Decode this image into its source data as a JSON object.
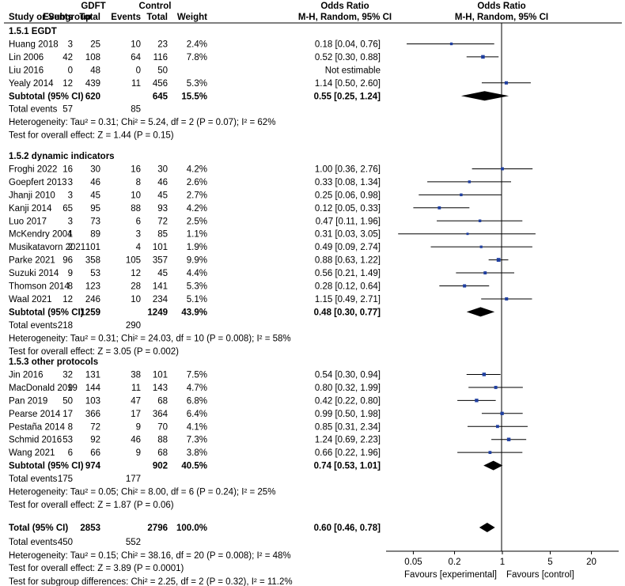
{
  "chart_data": {
    "type": "forest",
    "headers": {
      "study": "Study or Subgroup",
      "group_exp": "GDFT",
      "group_ctrl": "Control",
      "events": "Events",
      "total": "Total",
      "weight": "Weight",
      "or_title": "Odds Ratio",
      "or_method": "M-H, Random, 95% CI"
    },
    "subgroups": [
      {
        "title": "1.5.1 EGDT",
        "studies": [
          {
            "name": "Huang 2018",
            "e_ev": "3",
            "e_tot": "25",
            "c_ev": "10",
            "c_tot": "23",
            "weight": "2.4%",
            "ci_text": "0.18 [0.04, 0.76]",
            "or": 0.18,
            "lo": 0.04,
            "hi": 0.76
          },
          {
            "name": "Lin 2006",
            "e_ev": "42",
            "e_tot": "108",
            "c_ev": "64",
            "c_tot": "116",
            "weight": "7.8%",
            "ci_text": "0.52 [0.30, 0.88]",
            "or": 0.52,
            "lo": 0.3,
            "hi": 0.88
          },
          {
            "name": "Liu 2016",
            "e_ev": "0",
            "e_tot": "48",
            "c_ev": "0",
            "c_tot": "50",
            "weight": "",
            "ci_text": "Not estimable",
            "or": null,
            "lo": null,
            "hi": null
          },
          {
            "name": "Yealy 2014",
            "e_ev": "12",
            "e_tot": "439",
            "c_ev": "11",
            "c_tot": "456",
            "weight": "5.3%",
            "ci_text": "1.14 [0.50, 2.60]",
            "or": 1.14,
            "lo": 0.5,
            "hi": 2.6
          }
        ],
        "subtotal": {
          "label": "Subtotal (95% CI)",
          "e_tot": "620",
          "c_tot": "645",
          "weight": "15.5%",
          "ci_text": "0.55 [0.25, 1.24]",
          "or": 0.55,
          "lo": 0.25,
          "hi": 1.24
        },
        "total_events": {
          "label": "Total events",
          "e": "57",
          "c": "85"
        },
        "heterogeneity": "Heterogeneity: Tau² = 0.31; Chi² = 5.24, df = 2 (P = 0.07); I² = 62%",
        "overall_effect": "Test for overall effect: Z = 1.44 (P = 0.15)"
      },
      {
        "title": "1.5.2 dynamic indicators",
        "studies": [
          {
            "name": "Froghi 2022",
            "e_ev": "16",
            "e_tot": "30",
            "c_ev": "16",
            "c_tot": "30",
            "weight": "4.2%",
            "ci_text": "1.00 [0.36, 2.76]",
            "or": 1.0,
            "lo": 0.36,
            "hi": 2.76
          },
          {
            "name": "Goepfert 2013",
            "e_ev": "3",
            "e_tot": "46",
            "c_ev": "8",
            "c_tot": "46",
            "weight": "2.6%",
            "ci_text": "0.33 [0.08, 1.34]",
            "or": 0.33,
            "lo": 0.08,
            "hi": 1.34
          },
          {
            "name": "Jhanji 2010",
            "e_ev": "3",
            "e_tot": "45",
            "c_ev": "10",
            "c_tot": "45",
            "weight": "2.7%",
            "ci_text": "0.25 [0.06, 0.98]",
            "or": 0.25,
            "lo": 0.06,
            "hi": 0.98
          },
          {
            "name": "Kanji 2014",
            "e_ev": "65",
            "e_tot": "95",
            "c_ev": "88",
            "c_tot": "93",
            "weight": "4.2%",
            "ci_text": "0.12 [0.05, 0.33]",
            "or": 0.12,
            "lo": 0.05,
            "hi": 0.33
          },
          {
            "name": "Luo 2017",
            "e_ev": "3",
            "e_tot": "73",
            "c_ev": "6",
            "c_tot": "72",
            "weight": "2.5%",
            "ci_text": "0.47 [0.11, 1.96]",
            "or": 0.47,
            "lo": 0.11,
            "hi": 1.96
          },
          {
            "name": "McKendry 2004",
            "e_ev": "1",
            "e_tot": "89",
            "c_ev": "3",
            "c_tot": "85",
            "weight": "1.1%",
            "ci_text": "0.31 [0.03, 3.05]",
            "or": 0.31,
            "lo": 0.03,
            "hi": 3.05
          },
          {
            "name": "Musikatavorn 2021",
            "e_ev": "2",
            "e_tot": "101",
            "c_ev": "4",
            "c_tot": "101",
            "weight": "1.9%",
            "ci_text": "0.49 [0.09, 2.74]",
            "or": 0.49,
            "lo": 0.09,
            "hi": 2.74
          },
          {
            "name": "Parke 2021",
            "e_ev": "96",
            "e_tot": "358",
            "c_ev": "105",
            "c_tot": "357",
            "weight": "9.9%",
            "ci_text": "0.88 [0.63, 1.22]",
            "or": 0.88,
            "lo": 0.63,
            "hi": 1.22
          },
          {
            "name": "Suzuki 2014",
            "e_ev": "9",
            "e_tot": "53",
            "c_ev": "12",
            "c_tot": "45",
            "weight": "4.4%",
            "ci_text": "0.56 [0.21, 1.49]",
            "or": 0.56,
            "lo": 0.21,
            "hi": 1.49
          },
          {
            "name": "Thomson 2014",
            "e_ev": "8",
            "e_tot": "123",
            "c_ev": "28",
            "c_tot": "141",
            "weight": "5.3%",
            "ci_text": "0.28 [0.12, 0.64]",
            "or": 0.28,
            "lo": 0.12,
            "hi": 0.64
          },
          {
            "name": "Waal 2021",
            "e_ev": "12",
            "e_tot": "246",
            "c_ev": "10",
            "c_tot": "234",
            "weight": "5.1%",
            "ci_text": "1.15 [0.49, 2.71]",
            "or": 1.15,
            "lo": 0.49,
            "hi": 2.71
          }
        ],
        "subtotal": {
          "label": "Subtotal (95% CI)",
          "e_tot": "1259",
          "c_tot": "1249",
          "weight": "43.9%",
          "ci_text": "0.48 [0.30, 0.77]",
          "or": 0.48,
          "lo": 0.3,
          "hi": 0.77
        },
        "total_events": {
          "label": "Total events",
          "e": "218",
          "c": "290"
        },
        "heterogeneity": "Heterogeneity: Tau² = 0.31; Chi² = 24.03, df = 10 (P = 0.008); I² = 58%",
        "overall_effect": "Test for overall effect: Z = 3.05 (P = 0.002)"
      },
      {
        "title": "1.5.3 other protocols",
        "studies": [
          {
            "name": "Jin 2016",
            "e_ev": "32",
            "e_tot": "131",
            "c_ev": "38",
            "c_tot": "101",
            "weight": "7.5%",
            "ci_text": "0.54 [0.30, 0.94]",
            "or": 0.54,
            "lo": 0.3,
            "hi": 0.94
          },
          {
            "name": "MacDonald 2019",
            "e_ev": "9",
            "e_tot": "144",
            "c_ev": "11",
            "c_tot": "143",
            "weight": "4.7%",
            "ci_text": "0.80 [0.32, 1.99]",
            "or": 0.8,
            "lo": 0.32,
            "hi": 1.99
          },
          {
            "name": "Pan 2019",
            "e_ev": "50",
            "e_tot": "103",
            "c_ev": "47",
            "c_tot": "68",
            "weight": "6.8%",
            "ci_text": "0.42 [0.22, 0.80]",
            "or": 0.42,
            "lo": 0.22,
            "hi": 0.8
          },
          {
            "name": "Pearse 2014",
            "e_ev": "17",
            "e_tot": "366",
            "c_ev": "17",
            "c_tot": "364",
            "weight": "6.4%",
            "ci_text": "0.99 [0.50, 1.98]",
            "or": 0.99,
            "lo": 0.5,
            "hi": 1.98
          },
          {
            "name": "Pestaña 2014",
            "e_ev": "8",
            "e_tot": "72",
            "c_ev": "9",
            "c_tot": "70",
            "weight": "4.1%",
            "ci_text": "0.85 [0.31, 2.34]",
            "or": 0.85,
            "lo": 0.31,
            "hi": 2.34
          },
          {
            "name": "Schmid 2016",
            "e_ev": "53",
            "e_tot": "92",
            "c_ev": "46",
            "c_tot": "88",
            "weight": "7.3%",
            "ci_text": "1.24 [0.69, 2.23]",
            "or": 1.24,
            "lo": 0.69,
            "hi": 2.23
          },
          {
            "name": "Wang 2021",
            "e_ev": "6",
            "e_tot": "66",
            "c_ev": "9",
            "c_tot": "68",
            "weight": "3.8%",
            "ci_text": "0.66 [0.22, 1.96]",
            "or": 0.66,
            "lo": 0.22,
            "hi": 1.96
          }
        ],
        "subtotal": {
          "label": "Subtotal (95% CI)",
          "e_tot": "974",
          "c_tot": "902",
          "weight": "40.5%",
          "ci_text": "0.74 [0.53, 1.01]",
          "or": 0.74,
          "lo": 0.53,
          "hi": 1.01
        },
        "total_events": {
          "label": "Total events",
          "e": "175",
          "c": "177"
        },
        "heterogeneity": "Heterogeneity: Tau² = 0.05; Chi² = 8.00, df = 6 (P = 0.24); I² = 25%",
        "overall_effect": "Test for overall effect: Z = 1.87 (P = 0.06)"
      }
    ],
    "overall": {
      "label": "Total (95% CI)",
      "e_tot": "2853",
      "c_tot": "2796",
      "weight": "100.0%",
      "ci_text": "0.60 [0.46, 0.78]",
      "or": 0.6,
      "lo": 0.46,
      "hi": 0.78,
      "total_events": {
        "label": "Total events",
        "e": "450",
        "c": "552"
      },
      "heterogeneity": "Heterogeneity: Tau² = 0.15; Chi² = 38.16, df = 20 (P = 0.008); I² = 48%",
      "overall_effect": "Test for overall effect: Z = 3.89 (P = 0.0001)",
      "subgroup_diff": "Test for subgroup differences: Chi² = 2.25, df = 2 (P = 0.32), I² = 11.2%"
    },
    "axis": {
      "scale": "log",
      "ticks": [
        0.05,
        0.2,
        1,
        5,
        20
      ],
      "tick_labels": [
        "0.05",
        "0.2",
        "1",
        "5",
        "20"
      ],
      "xlim": [
        0.02,
        50
      ],
      "favours_left": "Favours [experimental]",
      "favours_right": "Favours [control]"
    },
    "colors": {
      "square": "#1f3fa0",
      "diamond": "#000000",
      "line": "#000000"
    }
  }
}
